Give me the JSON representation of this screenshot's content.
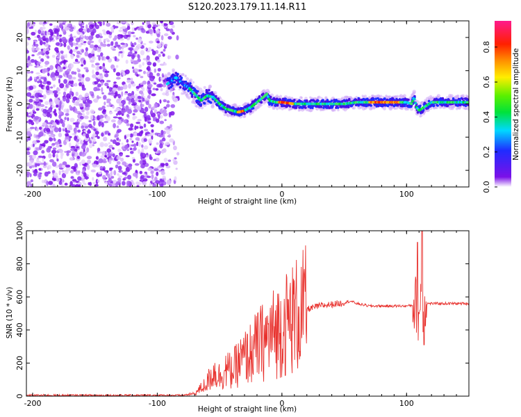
{
  "title": "S120.2023.179.11.14.R11",
  "colors": {
    "snr_line": "#e8302c",
    "spectrum_scatter": "#7b10e8",
    "axis": "#000000"
  },
  "chart_data": [
    {
      "type": "heatmap",
      "id": "spectrogram",
      "xlabel": "Height of straight line (km)",
      "ylabel": "Frequency (Hz)",
      "xlim": [
        -205,
        150
      ],
      "ylim": [
        -25,
        25
      ],
      "xticks": [
        -200,
        -100,
        0,
        100
      ],
      "yticks": [
        -20,
        -10,
        0,
        10,
        20
      ],
      "grid": false,
      "colormap": "rainbow (purple→blue→cyan→green→yellow→orange→red→magenta)",
      "colorbar": {
        "label": "Normalized spectral amplitude",
        "range": [
          0,
          0.95
        ],
        "ticks": [
          0.0,
          0.2,
          0.4,
          0.6,
          0.8
        ]
      },
      "noise_region_x": [
        -205,
        -93
      ],
      "signal_trace": {
        "x": [
          -92,
          -85,
          -80,
          -75,
          -70,
          -65,
          -60,
          -55,
          -50,
          -45,
          -40,
          -35,
          -30,
          -25,
          -20,
          -15,
          -12,
          -10,
          -5,
          0,
          10,
          20,
          30,
          40,
          50,
          60,
          70,
          80,
          90,
          100,
          104,
          106,
          108,
          110,
          120,
          130,
          140,
          150
        ],
        "y": [
          6,
          8,
          6,
          5,
          3,
          1,
          2.5,
          2,
          0,
          -1.5,
          -2,
          -2.5,
          -2,
          -1,
          0.5,
          2,
          3,
          1,
          0.5,
          0.5,
          0,
          0,
          0,
          0,
          0,
          0.5,
          0.5,
          0.5,
          0.5,
          0.5,
          0,
          2,
          -1,
          -2,
          0.5,
          0.5,
          0.5,
          0.5
        ]
      }
    },
    {
      "type": "line",
      "id": "snr",
      "xlabel": "Height of straight line (km)",
      "ylabel": "SNR (10 * v/v)",
      "xlim": [
        -205,
        150
      ],
      "ylim": [
        0,
        1000
      ],
      "xticks": [
        -200,
        -100,
        0,
        100
      ],
      "yticks": [
        0,
        200,
        400,
        600,
        800,
        1000
      ],
      "grid": false,
      "series": [
        {
          "x": [
            -205,
            -150,
            -100,
            -80,
            -70,
            -60,
            -55,
            -50,
            -45,
            -40,
            -35,
            -30,
            -25,
            -20,
            -15,
            -10,
            -5,
            0,
            5,
            10,
            15,
            20,
            25,
            30,
            40,
            50,
            55,
            60,
            70,
            80,
            90,
            100,
            105,
            108,
            110,
            112,
            113,
            115,
            120,
            130,
            140,
            150
          ],
          "y": [
            5,
            5,
            5,
            5,
            15,
            80,
            150,
            120,
            160,
            150,
            200,
            230,
            260,
            300,
            330,
            360,
            390,
            420,
            450,
            480,
            505,
            525,
            535,
            545,
            555,
            565,
            575,
            560,
            545,
            545,
            545,
            545,
            550,
            560,
            450,
            700,
            500,
            560,
            560,
            560,
            560,
            560
          ]
        }
      ]
    }
  ]
}
